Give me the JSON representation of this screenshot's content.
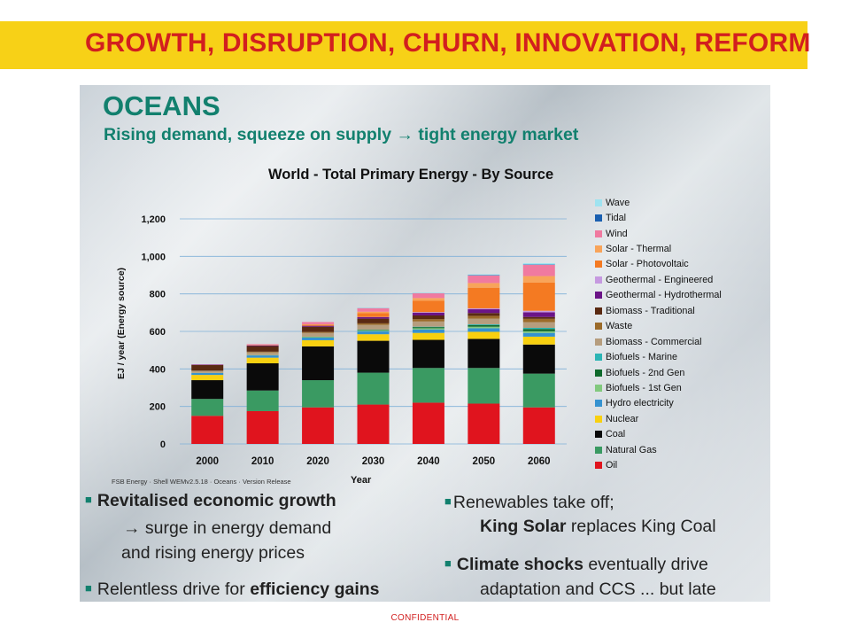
{
  "banner": {
    "title": "GROWTH, DISRUPTION, CHURN, INNOVATION, REFORM",
    "color": "#f7d117",
    "title_color": "#d21f1f"
  },
  "scenario": {
    "name": "OCEANS",
    "subtitle": "Rising demand, squeeze on supply → tight energy market",
    "color": "#12806e"
  },
  "chart_data": {
    "type": "bar",
    "stacked": true,
    "title": "World - Total Primary Energy - By Source",
    "xlabel": "Year",
    "ylabel": "EJ / year (Energy source)",
    "ylim": [
      0,
      1200
    ],
    "yticks": [
      0,
      200,
      400,
      600,
      800,
      1000,
      1200
    ],
    "ytick_labels": [
      "0",
      "200",
      "400",
      "600",
      "800",
      "1,000",
      "1,200"
    ],
    "categories": [
      "2000",
      "2010",
      "2020",
      "2030",
      "2040",
      "2050",
      "2060"
    ],
    "grid": true,
    "legend_position": "right",
    "series": [
      {
        "name": "Oil",
        "color": "#e0141e",
        "values": [
          150,
          175,
          195,
          210,
          220,
          215,
          195
        ]
      },
      {
        "name": "Natural Gas",
        "color": "#3a9a62",
        "values": [
          90,
          110,
          145,
          170,
          185,
          190,
          180
        ]
      },
      {
        "name": "Coal",
        "color": "#0a0a0a",
        "values": [
          100,
          145,
          180,
          170,
          150,
          155,
          155
        ]
      },
      {
        "name": "Nuclear",
        "color": "#f8d010",
        "values": [
          28,
          30,
          33,
          35,
          37,
          38,
          42
        ]
      },
      {
        "name": "Hydro electricity",
        "color": "#3592d0",
        "values": [
          10,
          12,
          14,
          16,
          18,
          19,
          20
        ]
      },
      {
        "name": "Biofuels - 1st Gen",
        "color": "#82c97e",
        "values": [
          1,
          2,
          4,
          5,
          7,
          8,
          9
        ]
      },
      {
        "name": "Biofuels - 2nd Gen",
        "color": "#0f6a2c",
        "values": [
          0,
          0,
          1,
          3,
          6,
          9,
          12
        ]
      },
      {
        "name": "Biofuels - Marine",
        "color": "#2cb5b5",
        "values": [
          0,
          0,
          0,
          1,
          2,
          4,
          6
        ]
      },
      {
        "name": "Biomass - Commercial",
        "color": "#b69d7e",
        "values": [
          10,
          15,
          20,
          25,
          28,
          30,
          30
        ]
      },
      {
        "name": "Waste",
        "color": "#9b6b2a",
        "values": [
          2,
          3,
          5,
          8,
          12,
          15,
          18
        ]
      },
      {
        "name": "Biomass - Traditional",
        "color": "#5a2a12",
        "values": [
          30,
          30,
          28,
          25,
          20,
          15,
          10
        ]
      },
      {
        "name": "Geothermal - Hydrothermal",
        "color": "#6b1487",
        "values": [
          2,
          3,
          5,
          8,
          15,
          20,
          25
        ]
      },
      {
        "name": "Geothermal - Engineered",
        "color": "#c69ae0",
        "values": [
          0,
          0,
          0,
          1,
          3,
          5,
          8
        ]
      },
      {
        "name": "Solar - Photovoltaic",
        "color": "#f47a22",
        "values": [
          0,
          1,
          5,
          20,
          60,
          110,
          150
        ]
      },
      {
        "name": "Solar - Thermal",
        "color": "#f8a45a",
        "values": [
          0,
          1,
          3,
          8,
          15,
          25,
          35
        ]
      },
      {
        "name": "Wind",
        "color": "#f07aa0",
        "values": [
          1,
          5,
          12,
          18,
          25,
          40,
          60
        ]
      },
      {
        "name": "Tidal",
        "color": "#1a5fb0",
        "values": [
          0,
          0,
          0,
          1,
          1,
          2,
          2
        ]
      },
      {
        "name": "Wave",
        "color": "#9fe3f0",
        "values": [
          0,
          0,
          0,
          1,
          2,
          4,
          7
        ]
      }
    ],
    "source_note": "FSB Energy · Shell WEMv2.5.18 · Oceans · Version Release"
  },
  "bullets": {
    "b1_bold": "Revitalised economic growth",
    "b1_line2": "→ surge in energy demand",
    "b1_line3": "and rising energy prices",
    "b2_pre": "Relentless drive for ",
    "b2_bold": "efficiency gains",
    "b3_line1": "Renewables take off;",
    "b3_bold": "King Solar",
    "b3_rest": " replaces King Coal",
    "b4_bold": "Climate shocks",
    "b4_rest": " eventually drive",
    "b4_line2": "adaptation and CCS ... but late"
  },
  "footer": {
    "confidential": "CONFIDENTIAL"
  }
}
